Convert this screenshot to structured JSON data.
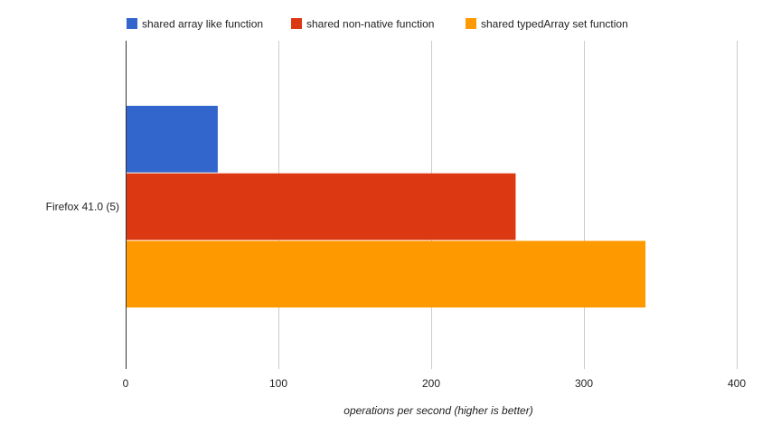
{
  "chart_data": {
    "type": "bar",
    "orientation": "horizontal",
    "categories": [
      "Firefox 41.0 (5)"
    ],
    "series": [
      {
        "name": "shared array like function",
        "values": [
          60
        ],
        "color": "#3366cc"
      },
      {
        "name": "shared non-native function",
        "values": [
          255
        ],
        "color": "#dc3912"
      },
      {
        "name": "shared typedArray set function",
        "values": [
          340
        ],
        "color": "#ff9900"
      }
    ],
    "xlim": [
      0,
      400
    ],
    "xticks": [
      0,
      100,
      200,
      300,
      400
    ],
    "xlabel": "operations per second (higher is better)",
    "ylabel": "",
    "grid": true,
    "legend_position": "top"
  }
}
